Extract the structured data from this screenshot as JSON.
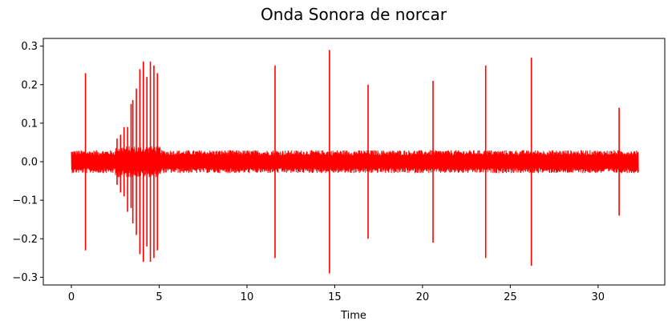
{
  "chart_data": {
    "type": "line",
    "title": "Onda Sonora de norcar",
    "xlabel": "Time",
    "ylabel": "",
    "xlim": [
      -1.6,
      33.8
    ],
    "ylim": [
      -0.32,
      0.32
    ],
    "xticks": [
      0,
      5,
      10,
      15,
      20,
      25,
      30
    ],
    "yticks": [
      -0.3,
      -0.2,
      -0.1,
      0.0,
      0.1,
      0.2,
      0.3
    ],
    "xtick_labels": [
      "0",
      "5",
      "10",
      "15",
      "20",
      "25",
      "30"
    ],
    "ytick_labels": [
      "−0.3",
      "−0.2",
      "−0.1",
      "0.0",
      "0.1",
      "0.2",
      "0.3"
    ],
    "grid": false,
    "legend": "none",
    "series": [
      {
        "color": "#ff0000",
        "duration": 32.3,
        "noise_amplitude": 0.03,
        "peaks": [
          {
            "x": 0.8,
            "max": 0.23,
            "min": -0.23
          },
          {
            "x": 2.6,
            "max": 0.06,
            "min": -0.06
          },
          {
            "x": 2.8,
            "max": 0.07,
            "min": -0.08
          },
          {
            "x": 3.0,
            "max": 0.09,
            "min": -0.09
          },
          {
            "x": 3.2,
            "max": 0.09,
            "min": -0.13
          },
          {
            "x": 3.4,
            "max": 0.15,
            "min": -0.12
          },
          {
            "x": 3.5,
            "max": 0.16,
            "min": -0.16
          },
          {
            "x": 3.7,
            "max": 0.19,
            "min": -0.19
          },
          {
            "x": 3.9,
            "max": 0.24,
            "min": -0.24
          },
          {
            "x": 4.1,
            "max": 0.26,
            "min": -0.26
          },
          {
            "x": 4.3,
            "max": 0.22,
            "min": -0.22
          },
          {
            "x": 4.5,
            "max": 0.26,
            "min": -0.26
          },
          {
            "x": 4.7,
            "max": 0.25,
            "min": -0.25
          },
          {
            "x": 4.9,
            "max": 0.23,
            "min": -0.23
          },
          {
            "x": 11.6,
            "max": 0.25,
            "min": -0.25
          },
          {
            "x": 14.7,
            "max": 0.29,
            "min": -0.29
          },
          {
            "x": 16.9,
            "max": 0.2,
            "min": -0.2
          },
          {
            "x": 20.6,
            "max": 0.21,
            "min": -0.21
          },
          {
            "x": 23.6,
            "max": 0.25,
            "min": -0.25
          },
          {
            "x": 26.2,
            "max": 0.27,
            "min": -0.27
          },
          {
            "x": 31.2,
            "max": 0.14,
            "min": -0.14
          }
        ]
      }
    ]
  }
}
